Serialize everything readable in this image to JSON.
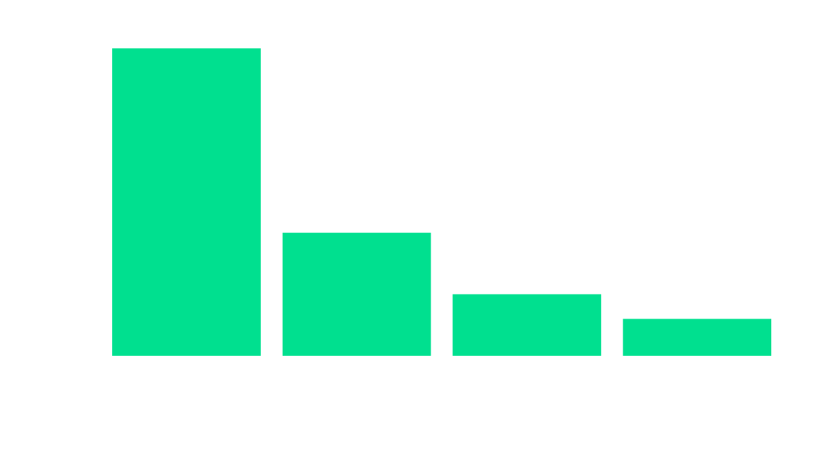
{
  "chart_data": {
    "type": "bar",
    "categories": [
      "",
      "",
      "",
      ""
    ],
    "values": [
      100,
      40,
      20,
      12
    ],
    "ylim": [
      0,
      100
    ],
    "title": "",
    "xlabel": "",
    "ylabel": "",
    "grid": false,
    "legend": "none",
    "colors": {
      "bar": "#00e08f",
      "background": "#ffffff"
    }
  }
}
